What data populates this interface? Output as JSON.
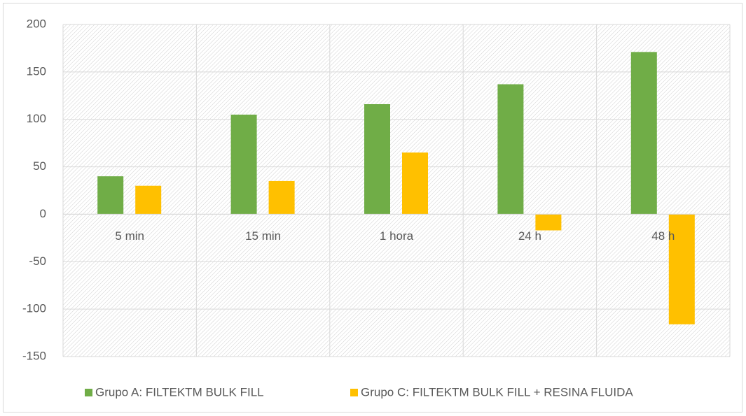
{
  "chart_data": {
    "type": "bar",
    "categories": [
      "5 min",
      "15 min",
      "1 hora",
      "24 h",
      "48 h"
    ],
    "series": [
      {
        "name": "Grupo A: FILTEKTM BULK FILL",
        "color": "#70ad47",
        "values": [
          40,
          105,
          116,
          137,
          171
        ]
      },
      {
        "name": "Grupo C: FILTEKTM BULK FILL + RESINA FLUIDA",
        "color": "#ffc000",
        "values": [
          30,
          35,
          65,
          -17,
          -116
        ]
      }
    ],
    "ylim": [
      -150,
      200
    ],
    "yticks": [
      -150,
      -100,
      -50,
      0,
      50,
      100,
      150,
      200
    ],
    "grid": true,
    "legend": "bottom"
  }
}
